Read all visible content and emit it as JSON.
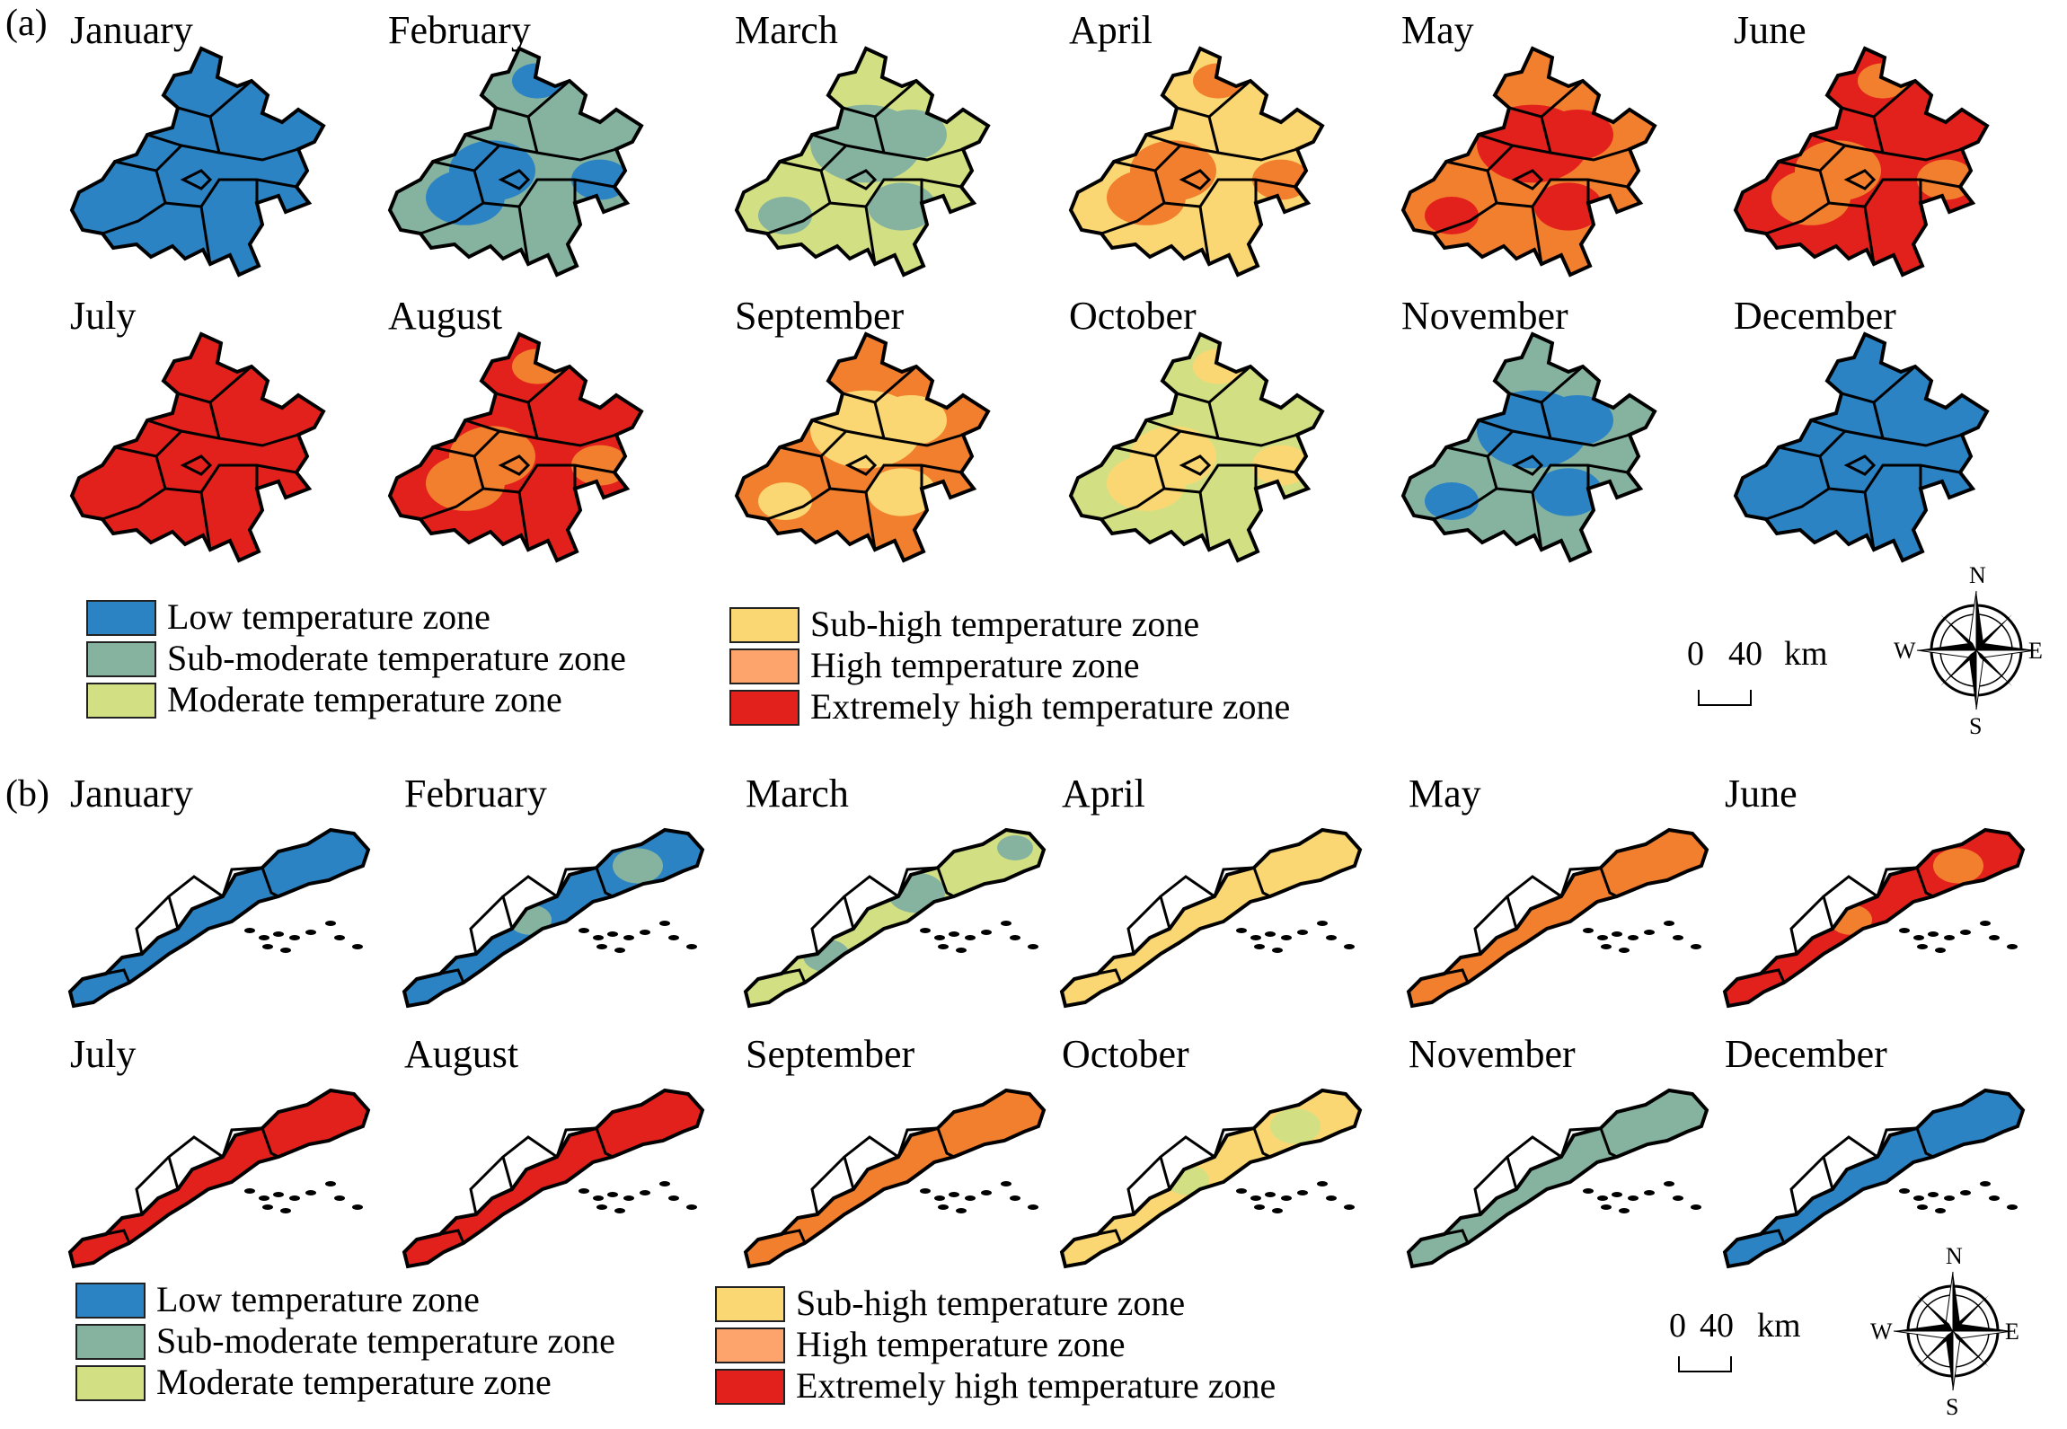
{
  "zones": [
    {
      "key": "low",
      "label": "Low temperature zone",
      "color": "#2b83c4"
    },
    {
      "key": "submoderate",
      "label": "Sub-moderate temperature zone",
      "color": "#86b3a0"
    },
    {
      "key": "moderate",
      "label": "Moderate temperature zone",
      "color": "#d2e083"
    },
    {
      "key": "subhigh",
      "label": "Sub-high temperature zone",
      "color": "#fbd773"
    },
    {
      "key": "high",
      "label": "High temperature zone",
      "color": "#fca46c"
    },
    {
      "key": "extreme",
      "label": "Extremely high temperature zone",
      "color": "#e3211c"
    }
  ],
  "extra_colors": {
    "orange": "#f27f2e",
    "land_outline": "#000000"
  },
  "panel_a": {
    "label": "(a)",
    "months": [
      {
        "name": "January",
        "base": "low",
        "patch": "low"
      },
      {
        "name": "February",
        "base": "submoderate",
        "patch": "low"
      },
      {
        "name": "March",
        "base": "moderate",
        "patch": "submoderate"
      },
      {
        "name": "April",
        "base": "subhigh",
        "patch": "orange"
      },
      {
        "name": "May",
        "base": "orange",
        "patch": "extreme"
      },
      {
        "name": "June",
        "base": "extreme",
        "patch": "orange"
      },
      {
        "name": "July",
        "base": "extreme",
        "patch": "extreme"
      },
      {
        "name": "August",
        "base": "extreme",
        "patch": "orange"
      },
      {
        "name": "September",
        "base": "orange",
        "patch": "subhigh"
      },
      {
        "name": "October",
        "base": "moderate",
        "patch": "subhigh"
      },
      {
        "name": "November",
        "base": "submoderate",
        "patch": "low"
      },
      {
        "name": "December",
        "base": "low",
        "patch": "low"
      }
    ],
    "scale": {
      "zero": "0",
      "forty": "40",
      "unit": "km"
    },
    "compass": {
      "n": "N",
      "s": "S",
      "e": "E",
      "w": "W"
    }
  },
  "panel_b": {
    "label": "(b)",
    "months": [
      {
        "name": "January",
        "base": "low",
        "patch": "low"
      },
      {
        "name": "February",
        "base": "low",
        "patch": "submoderate"
      },
      {
        "name": "March",
        "base": "moderate",
        "patch": "submoderate"
      },
      {
        "name": "April",
        "base": "subhigh",
        "patch": "subhigh"
      },
      {
        "name": "May",
        "base": "orange",
        "patch": "orange"
      },
      {
        "name": "June",
        "base": "extreme",
        "patch": "orange"
      },
      {
        "name": "July",
        "base": "extreme",
        "patch": "extreme"
      },
      {
        "name": "August",
        "base": "extreme",
        "patch": "extreme"
      },
      {
        "name": "September",
        "base": "orange",
        "patch": "orange"
      },
      {
        "name": "October",
        "base": "subhigh",
        "patch": "moderate"
      },
      {
        "name": "November",
        "base": "submoderate",
        "patch": "submoderate"
      },
      {
        "name": "December",
        "base": "low",
        "patch": "low"
      }
    ],
    "scale": {
      "zero": "0",
      "forty": "40",
      "unit": "km"
    },
    "compass": {
      "n": "N",
      "s": "S",
      "e": "E",
      "w": "W"
    }
  }
}
